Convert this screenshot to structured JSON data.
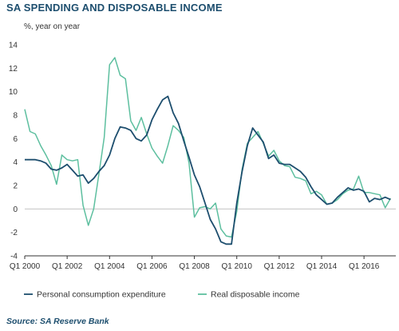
{
  "title": "SA SPENDING AND DISPOSABLE INCOME",
  "source": "Source: SA Reserve Bank",
  "chart_data": {
    "type": "line",
    "ylabel": "%, year on year",
    "ylim": [
      -4,
      14
    ],
    "yticks": [
      -4,
      -2,
      0,
      2,
      4,
      6,
      8,
      10,
      12,
      14
    ],
    "xlim": [
      2000.0,
      2017.5
    ],
    "xticks": [
      {
        "value": 2000,
        "label": "Q1 2000"
      },
      {
        "value": 2002,
        "label": "Q1 2002"
      },
      {
        "value": 2004,
        "label": "Q1 2004"
      },
      {
        "value": 2006,
        "label": "Q1 2006"
      },
      {
        "value": 2008,
        "label": "Q1 2008"
      },
      {
        "value": 2010,
        "label": "Q1 2010"
      },
      {
        "value": 2012,
        "label": "Q1 2012"
      },
      {
        "value": 2014,
        "label": "Q1 2014"
      },
      {
        "value": 2016,
        "label": "Q1 2016"
      }
    ],
    "grid": "none",
    "legend_position": "bottom",
    "x": [
      2000.0,
      2000.25,
      2000.5,
      2000.75,
      2001.0,
      2001.25,
      2001.5,
      2001.75,
      2002.0,
      2002.25,
      2002.5,
      2002.75,
      2003.0,
      2003.25,
      2003.5,
      2003.75,
      2004.0,
      2004.25,
      2004.5,
      2004.75,
      2005.0,
      2005.25,
      2005.5,
      2005.75,
      2006.0,
      2006.25,
      2006.5,
      2006.75,
      2007.0,
      2007.25,
      2007.5,
      2007.75,
      2008.0,
      2008.25,
      2008.5,
      2008.75,
      2009.0,
      2009.25,
      2009.5,
      2009.75,
      2010.0,
      2010.25,
      2010.5,
      2010.75,
      2011.0,
      2011.25,
      2011.5,
      2011.75,
      2012.0,
      2012.25,
      2012.5,
      2012.75,
      2013.0,
      2013.25,
      2013.5,
      2013.75,
      2014.0,
      2014.25,
      2014.5,
      2014.75,
      2015.0,
      2015.25,
      2015.5,
      2015.75,
      2016.0,
      2016.25,
      2016.5,
      2016.75,
      2017.0,
      2017.25
    ],
    "series": [
      {
        "name": "Personal consumption expenditure",
        "color": "#1d4e6e",
        "values": [
          4.2,
          4.2,
          4.2,
          4.1,
          3.9,
          3.4,
          3.3,
          3.5,
          3.8,
          3.3,
          2.8,
          2.9,
          2.2,
          2.6,
          3.2,
          3.7,
          4.6,
          6.0,
          7.0,
          6.9,
          6.7,
          6.0,
          5.8,
          6.3,
          7.6,
          8.5,
          9.3,
          9.6,
          8.2,
          7.3,
          5.8,
          4.4,
          2.9,
          1.9,
          0.5,
          -0.9,
          -1.7,
          -2.8,
          -3.0,
          -3.0,
          0.5,
          3.2,
          5.4,
          6.9,
          6.3,
          5.7,
          4.3,
          4.6,
          3.9,
          3.8,
          3.8,
          3.5,
          3.2,
          2.7,
          1.9,
          1.2,
          0.8,
          0.4,
          0.5,
          1.0,
          1.4,
          1.8,
          1.6,
          1.7,
          1.5,
          0.6,
          0.9,
          0.8,
          1.0,
          0.8
        ]
      },
      {
        "name": "Real disposable income",
        "color": "#5dbf9f",
        "values": [
          8.5,
          6.6,
          6.4,
          5.4,
          4.6,
          3.7,
          2.1,
          4.6,
          4.2,
          4.1,
          4.2,
          0.3,
          -1.4,
          0.0,
          3.0,
          6.1,
          12.3,
          12.9,
          11.4,
          11.1,
          7.5,
          6.7,
          7.8,
          6.4,
          5.2,
          4.5,
          3.9,
          5.4,
          7.1,
          6.7,
          6.1,
          3.9,
          -0.7,
          0.1,
          0.2,
          0.0,
          0.5,
          -1.7,
          -2.3,
          -2.4,
          -0.2,
          3.4,
          5.6,
          6.1,
          6.6,
          5.6,
          4.5,
          5.0,
          4.1,
          3.7,
          3.6,
          2.7,
          2.6,
          2.4,
          1.3,
          1.5,
          1.2,
          0.4,
          0.5,
          0.8,
          1.3,
          1.6,
          1.7,
          2.8,
          1.4,
          1.4,
          1.3,
          1.2,
          0.1,
          0.9
        ]
      }
    ]
  }
}
